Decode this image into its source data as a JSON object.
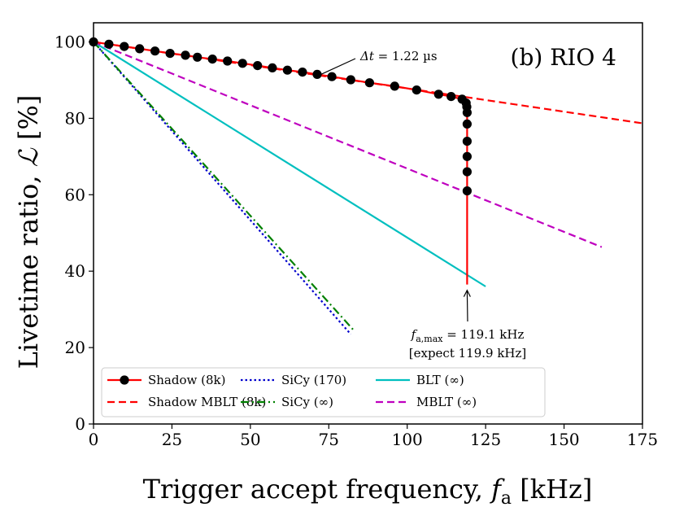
{
  "chart_data": {
    "type": "line",
    "title": "",
    "panel_label": "(b) RIO 4",
    "xlabel": "Trigger accept frequency, f_a [kHz]",
    "ylabel": "Livetime ratio, ℒ [%]",
    "xlim": [
      0,
      175
    ],
    "ylim": [
      0,
      105
    ],
    "xticks": [
      0,
      25,
      50,
      75,
      100,
      125,
      150,
      175
    ],
    "yticks": [
      0,
      20,
      40,
      60,
      80,
      100
    ],
    "grid": false,
    "legend_position": "bottom-left",
    "series": [
      {
        "name": "Shadow (8k)",
        "color": "#ff0000",
        "line": "solid",
        "marker": "circle",
        "marker_color": "#000000",
        "x": [
          0,
          4.9,
          9.8,
          14.7,
          19.6,
          24.4,
          29.3,
          33.1,
          37.9,
          42.7,
          47.5,
          52.3,
          57.0,
          61.8,
          66.6,
          71.3,
          76.0,
          82.0,
          88.0,
          96.0,
          103.0,
          110.0,
          114.0,
          117.5,
          118.8,
          119.0,
          119.1,
          119.1,
          119.1,
          119.1,
          119.1,
          119.1,
          119.1
        ],
        "y": [
          100,
          99.4,
          98.8,
          98.2,
          97.6,
          97.0,
          96.5,
          96.0,
          95.5,
          95.0,
          94.4,
          93.8,
          93.2,
          92.6,
          92.1,
          91.5,
          90.9,
          90.1,
          89.3,
          88.4,
          87.4,
          86.3,
          85.7,
          85.0,
          84.0,
          83.0,
          81.5,
          78.5,
          74.0,
          70.0,
          66.0,
          61.0,
          36.5
        ]
      },
      {
        "name": "Shadow MBLT (8k)",
        "color": "#ff0000",
        "line": "dashed",
        "x": [
          0,
          175
        ],
        "y": [
          100,
          78.7
        ]
      },
      {
        "name": "SiCy (170)",
        "color": "#0000cc",
        "line": "dotted",
        "x": [
          0,
          82
        ],
        "y": [
          100,
          23.5
        ]
      },
      {
        "name": "SiCy (∞)",
        "color": "#008000",
        "line": "dashdot",
        "x": [
          0,
          83
        ],
        "y": [
          100,
          24.5
        ]
      },
      {
        "name": "BLT (∞)",
        "color": "#00bfbf",
        "line": "solid",
        "x": [
          0,
          125
        ],
        "y": [
          100,
          36
        ]
      },
      {
        "name": "MBLT (∞)",
        "color": "#bf00bf",
        "line": "dashed",
        "x": [
          0,
          162
        ],
        "y": [
          100,
          46.3
        ]
      }
    ],
    "annotations": [
      {
        "id": "dt",
        "text_prefix": "Δt = ",
        "text_value": "1.22 µs",
        "arrow_to": [
          72,
          91.3
        ]
      },
      {
        "id": "fmax",
        "line1_prefix": "f",
        "line1_sub": "a,max",
        "line1_suffix": " = 119.1 kHz",
        "line2": "[expect 119.9 kHz]",
        "arrow_to": [
          119.1,
          35
        ]
      }
    ],
    "legend": [
      [
        "Shadow (8k)",
        "SiCy (170)",
        "BLT (∞)"
      ],
      [
        "Shadow MBLT (8k)",
        "SiCy (∞)",
        "MBLT (∞)"
      ]
    ]
  }
}
